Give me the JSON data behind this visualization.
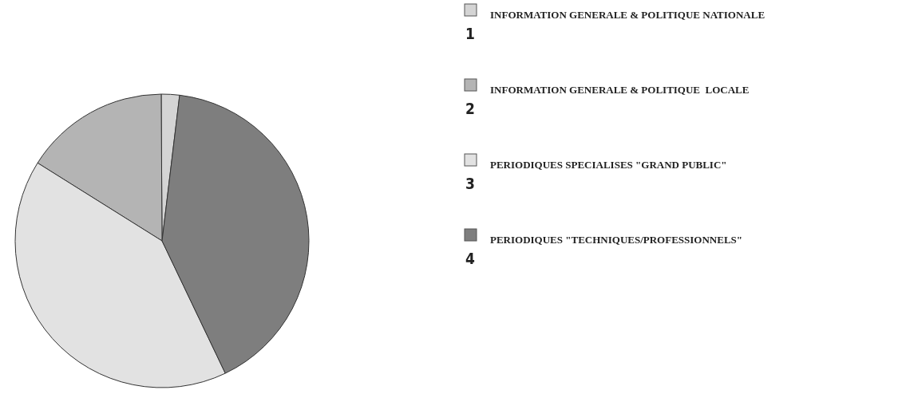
{
  "chart_data": {
    "type": "pie",
    "categories": [
      "INFORMATION GENERALE & POLITIQUE NATIONALE",
      "INFORMATION GENERALE & POLITIQUE  LOCALE",
      "PERIODIQUES SPECIALISES \"GRAND PUBLIC\"",
      "PERIODIQUES \"TECHNIQUES/PROFESSIONNELS\""
    ],
    "values": [
      2,
      16,
      41,
      41
    ],
    "colors": [
      "#d4d4d4",
      "#b4b4b4",
      "#e2e2e2",
      "#7e7e7e"
    ],
    "annotations": [
      "1",
      "2",
      "3",
      "4"
    ],
    "legend": "right"
  }
}
